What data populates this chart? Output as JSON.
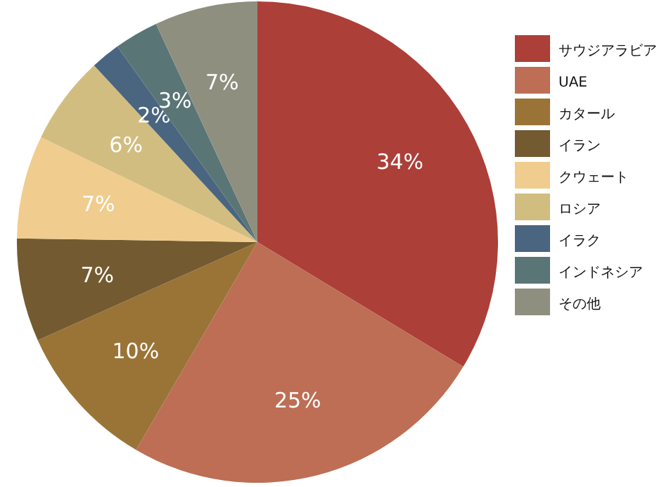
{
  "chart_data": {
    "type": "pie",
    "categories": [
      "サウジアラビア",
      "UAE",
      "カタール",
      "イラン",
      "クウェート",
      "ロシア",
      "イラク",
      "インドネシア",
      "その他"
    ],
    "values": [
      34,
      25,
      10,
      7,
      7,
      6,
      2,
      3,
      7
    ],
    "colors": [
      "#ac3f38",
      "#bd6e55",
      "#9a7437",
      "#735a30",
      "#f0cd8e",
      "#d2bd80",
      "#4a6580",
      "#5a7575",
      "#8f8f80"
    ],
    "value_labels": [
      "34%",
      "25%",
      "10%",
      "7%",
      "7%",
      "6%",
      "2%",
      "3%",
      "7%"
    ],
    "legend": "right"
  }
}
